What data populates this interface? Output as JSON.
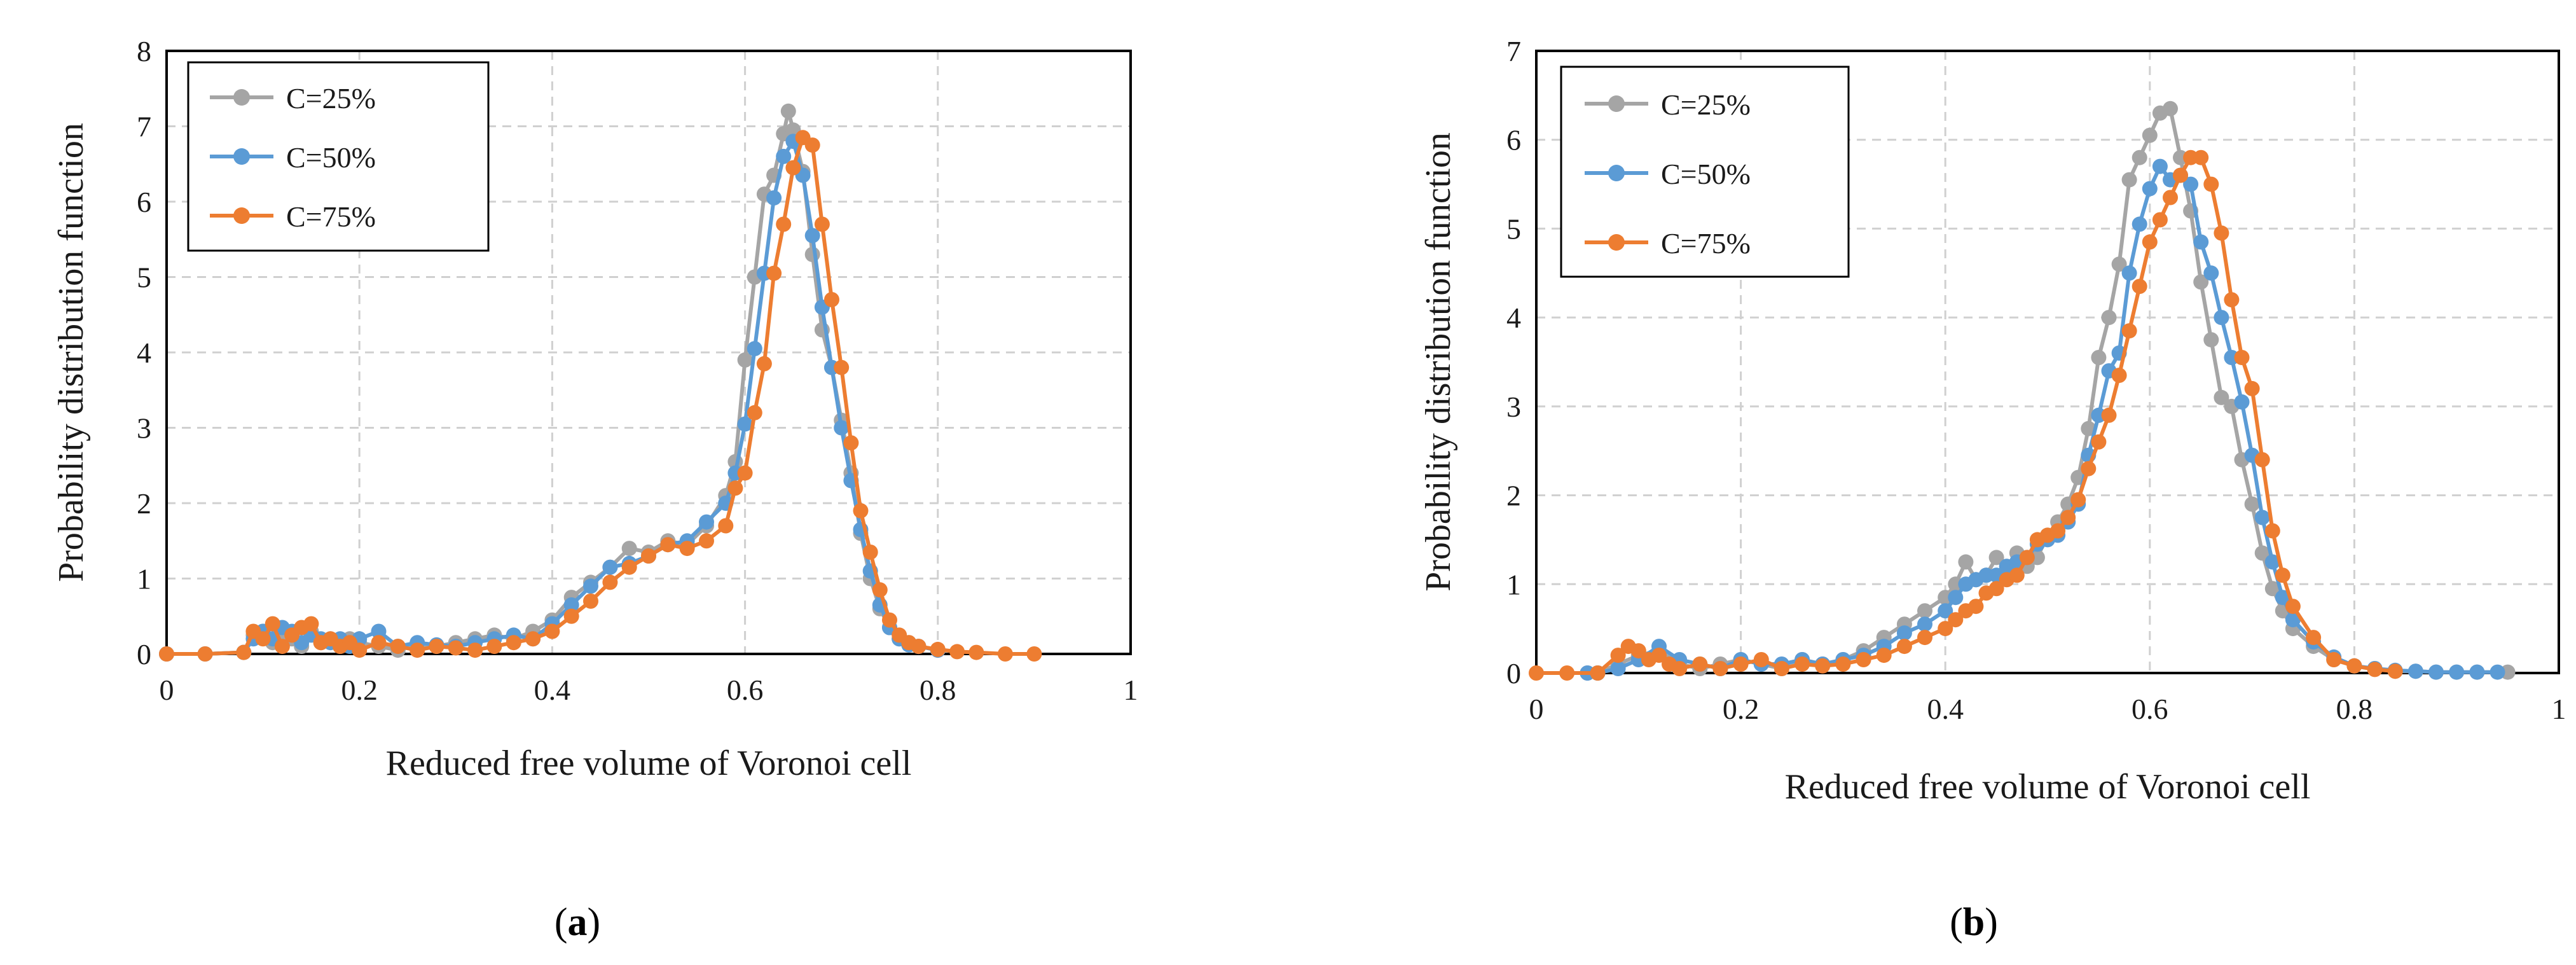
{
  "panels": [
    {
      "label_prefix": "(",
      "label_letter": "a",
      "label_suffix": ")"
    },
    {
      "label_prefix": "(",
      "label_letter": "b",
      "label_suffix": ")"
    }
  ],
  "chart_data": [
    {
      "type": "line",
      "xlabel": "Reduced free volume of Voronoi cell",
      "ylabel": "Probability distribution function",
      "xlim": [
        0,
        1
      ],
      "ylim": [
        0,
        8
      ],
      "xticks": [
        "0",
        "0.2",
        "0.4",
        "0.6",
        "0.8",
        "1"
      ],
      "yticks": [
        "0",
        "1",
        "2",
        "3",
        "4",
        "5",
        "6",
        "7",
        "8"
      ],
      "grid": "dashed",
      "legend_position": "top-left",
      "series": [
        {
          "name": "C=25%",
          "color": "#a5a5a5",
          "x": [
            0,
            0.04,
            0.08,
            0.09,
            0.1,
            0.11,
            0.12,
            0.13,
            0.14,
            0.15,
            0.16,
            0.17,
            0.18,
            0.19,
            0.2,
            0.22,
            0.24,
            0.26,
            0.28,
            0.3,
            0.32,
            0.34,
            0.36,
            0.38,
            0.4,
            0.42,
            0.44,
            0.46,
            0.48,
            0.5,
            0.52,
            0.54,
            0.56,
            0.58,
            0.59,
            0.6,
            0.61,
            0.62,
            0.63,
            0.64,
            0.645,
            0.65,
            0.66,
            0.67,
            0.68,
            0.69,
            0.7,
            0.71,
            0.72,
            0.73,
            0.74,
            0.75,
            0.76,
            0.77,
            0.78,
            0.8
          ],
          "y": [
            0,
            0,
            0.02,
            0.25,
            0.3,
            0.15,
            0.25,
            0.2,
            0.1,
            0.3,
            0.15,
            0.2,
            0.1,
            0.2,
            0.15,
            0.1,
            0.05,
            0.12,
            0.1,
            0.15,
            0.2,
            0.25,
            0.2,
            0.3,
            0.45,
            0.75,
            0.95,
            1.15,
            1.4,
            1.35,
            1.5,
            1.45,
            1.7,
            2.1,
            2.55,
            3.9,
            5.0,
            6.1,
            6.35,
            6.9,
            7.2,
            6.95,
            6.4,
            5.3,
            4.3,
            3.8,
            3.1,
            2.4,
            1.6,
            1.0,
            0.6,
            0.35,
            0.2,
            0.15,
            0.1,
            0.05
          ]
        },
        {
          "name": "C=50%",
          "color": "#5b9bd5",
          "x": [
            0,
            0.04,
            0.08,
            0.09,
            0.1,
            0.11,
            0.12,
            0.13,
            0.14,
            0.15,
            0.16,
            0.17,
            0.18,
            0.19,
            0.2,
            0.22,
            0.24,
            0.26,
            0.28,
            0.3,
            0.32,
            0.34,
            0.36,
            0.38,
            0.4,
            0.42,
            0.44,
            0.46,
            0.48,
            0.5,
            0.52,
            0.54,
            0.56,
            0.58,
            0.59,
            0.6,
            0.61,
            0.62,
            0.63,
            0.64,
            0.65,
            0.66,
            0.67,
            0.68,
            0.69,
            0.7,
            0.71,
            0.72,
            0.73,
            0.74,
            0.75,
            0.76,
            0.77,
            0.78,
            0.8
          ],
          "y": [
            0,
            0,
            0.02,
            0.2,
            0.3,
            0.2,
            0.35,
            0.3,
            0.15,
            0.25,
            0.2,
            0.15,
            0.2,
            0.1,
            0.2,
            0.3,
            0.1,
            0.15,
            0.12,
            0.1,
            0.15,
            0.2,
            0.25,
            0.2,
            0.4,
            0.65,
            0.9,
            1.15,
            1.2,
            1.3,
            1.45,
            1.5,
            1.75,
            2.0,
            2.4,
            3.05,
            4.05,
            5.05,
            6.05,
            6.6,
            6.8,
            6.35,
            5.55,
            4.6,
            3.8,
            3.0,
            2.3,
            1.65,
            1.1,
            0.65,
            0.35,
            0.2,
            0.12,
            0.1,
            0.05
          ]
        },
        {
          "name": "C=75%",
          "color": "#ed7d31",
          "x": [
            0,
            0.04,
            0.08,
            0.09,
            0.1,
            0.11,
            0.12,
            0.13,
            0.14,
            0.15,
            0.16,
            0.17,
            0.18,
            0.19,
            0.2,
            0.22,
            0.24,
            0.26,
            0.28,
            0.3,
            0.32,
            0.34,
            0.36,
            0.38,
            0.4,
            0.42,
            0.44,
            0.46,
            0.48,
            0.5,
            0.52,
            0.54,
            0.56,
            0.58,
            0.59,
            0.6,
            0.61,
            0.62,
            0.63,
            0.64,
            0.65,
            0.66,
            0.67,
            0.68,
            0.69,
            0.7,
            0.71,
            0.72,
            0.73,
            0.74,
            0.75,
            0.76,
            0.77,
            0.78,
            0.8,
            0.82,
            0.84,
            0.87,
            0.9
          ],
          "y": [
            0,
            0,
            0.02,
            0.3,
            0.2,
            0.4,
            0.1,
            0.25,
            0.35,
            0.4,
            0.15,
            0.2,
            0.1,
            0.15,
            0.05,
            0.15,
            0.1,
            0.05,
            0.1,
            0.08,
            0.05,
            0.1,
            0.15,
            0.2,
            0.3,
            0.5,
            0.7,
            0.95,
            1.15,
            1.3,
            1.45,
            1.4,
            1.5,
            1.7,
            2.2,
            2.4,
            3.2,
            3.85,
            5.05,
            5.7,
            6.45,
            6.85,
            6.75,
            5.7,
            4.7,
            3.8,
            2.8,
            1.9,
            1.35,
            0.85,
            0.45,
            0.25,
            0.15,
            0.1,
            0.06,
            0.03,
            0.02,
            0,
            0
          ]
        }
      ]
    },
    {
      "type": "line",
      "xlabel": "Reduced free volume of Voronoi cell",
      "ylabel": "Probability distribution function",
      "xlim": [
        0,
        1
      ],
      "ylim": [
        0,
        7
      ],
      "xticks": [
        "0",
        "0.2",
        "0.4",
        "0.6",
        "0.8",
        "1"
      ],
      "yticks": [
        "0",
        "1",
        "2",
        "3",
        "4",
        "5",
        "6",
        "7"
      ],
      "grid": "dashed",
      "legend_position": "top-left",
      "series": [
        {
          "name": "C=25%",
          "color": "#a5a5a5",
          "x": [
            0.05,
            0.06,
            0.08,
            0.1,
            0.12,
            0.14,
            0.16,
            0.18,
            0.2,
            0.22,
            0.24,
            0.26,
            0.28,
            0.3,
            0.32,
            0.34,
            0.36,
            0.38,
            0.4,
            0.41,
            0.42,
            0.43,
            0.44,
            0.45,
            0.46,
            0.47,
            0.48,
            0.49,
            0.5,
            0.51,
            0.52,
            0.53,
            0.54,
            0.55,
            0.56,
            0.57,
            0.58,
            0.59,
            0.6,
            0.61,
            0.62,
            0.63,
            0.64,
            0.65,
            0.66,
            0.67,
            0.68,
            0.69,
            0.7,
            0.71,
            0.72,
            0.73,
            0.74,
            0.76,
            0.78,
            0.8,
            0.82,
            0.84,
            0.86,
            0.88,
            0.9,
            0.92,
            0.95
          ],
          "y": [
            0,
            0,
            0.1,
            0.2,
            0.25,
            0.1,
            0.05,
            0.1,
            0.15,
            0.1,
            0.05,
            0.15,
            0.1,
            0.15,
            0.25,
            0.4,
            0.55,
            0.7,
            0.85,
            1.0,
            1.25,
            1.05,
            1.1,
            1.3,
            1.15,
            1.35,
            1.2,
            1.3,
            1.55,
            1.7,
            1.9,
            2.2,
            2.75,
            3.55,
            4.0,
            4.6,
            5.55,
            5.8,
            6.05,
            6.3,
            6.35,
            5.8,
            5.2,
            4.4,
            3.75,
            3.1,
            3.0,
            2.4,
            1.9,
            1.35,
            0.95,
            0.7,
            0.5,
            0.3,
            0.15,
            0.08,
            0.05,
            0.02,
            0.02,
            0.01,
            0.01,
            0.01,
            0.01
          ]
        },
        {
          "name": "C=50%",
          "color": "#5b9bd5",
          "x": [
            0.05,
            0.06,
            0.08,
            0.1,
            0.12,
            0.14,
            0.16,
            0.18,
            0.2,
            0.22,
            0.24,
            0.26,
            0.28,
            0.3,
            0.32,
            0.34,
            0.36,
            0.38,
            0.4,
            0.41,
            0.42,
            0.43,
            0.44,
            0.45,
            0.46,
            0.47,
            0.48,
            0.49,
            0.5,
            0.51,
            0.52,
            0.53,
            0.54,
            0.55,
            0.56,
            0.57,
            0.58,
            0.59,
            0.6,
            0.61,
            0.62,
            0.63,
            0.64,
            0.65,
            0.66,
            0.67,
            0.68,
            0.69,
            0.7,
            0.71,
            0.72,
            0.73,
            0.74,
            0.76,
            0.78,
            0.8,
            0.82,
            0.84,
            0.86,
            0.88,
            0.9,
            0.92,
            0.94
          ],
          "y": [
            0,
            0,
            0.05,
            0.15,
            0.3,
            0.15,
            0.1,
            0.05,
            0.15,
            0.1,
            0.1,
            0.15,
            0.1,
            0.15,
            0.2,
            0.3,
            0.45,
            0.55,
            0.7,
            0.85,
            1.0,
            1.05,
            1.1,
            1.1,
            1.2,
            1.25,
            1.3,
            1.45,
            1.5,
            1.55,
            1.7,
            1.9,
            2.45,
            2.9,
            3.4,
            3.6,
            4.5,
            5.05,
            5.45,
            5.7,
            5.55,
            5.6,
            5.5,
            4.85,
            4.5,
            4.0,
            3.55,
            3.05,
            2.45,
            1.75,
            1.25,
            0.85,
            0.6,
            0.35,
            0.18,
            0.08,
            0.05,
            0.03,
            0.02,
            0.01,
            0.01,
            0.01,
            0.01
          ]
        },
        {
          "name": "C=75%",
          "color": "#ed7d31",
          "x": [
            0,
            0.03,
            0.06,
            0.08,
            0.09,
            0.1,
            0.11,
            0.12,
            0.13,
            0.14,
            0.16,
            0.18,
            0.2,
            0.22,
            0.24,
            0.26,
            0.28,
            0.3,
            0.32,
            0.34,
            0.36,
            0.38,
            0.4,
            0.41,
            0.42,
            0.43,
            0.44,
            0.45,
            0.46,
            0.47,
            0.48,
            0.49,
            0.5,
            0.51,
            0.52,
            0.53,
            0.54,
            0.55,
            0.56,
            0.57,
            0.58,
            0.59,
            0.6,
            0.61,
            0.62,
            0.63,
            0.64,
            0.65,
            0.66,
            0.67,
            0.68,
            0.69,
            0.7,
            0.71,
            0.72,
            0.73,
            0.74,
            0.76,
            0.78,
            0.8,
            0.82,
            0.84
          ],
          "y": [
            0,
            0,
            0,
            0.2,
            0.3,
            0.25,
            0.15,
            0.2,
            0.1,
            0.05,
            0.1,
            0.05,
            0.1,
            0.15,
            0.05,
            0.1,
            0.08,
            0.1,
            0.15,
            0.2,
            0.3,
            0.4,
            0.5,
            0.6,
            0.7,
            0.75,
            0.9,
            0.95,
            1.05,
            1.1,
            1.3,
            1.5,
            1.55,
            1.6,
            1.75,
            1.95,
            2.3,
            2.6,
            2.9,
            3.35,
            3.85,
            4.35,
            4.85,
            5.1,
            5.35,
            5.6,
            5.8,
            5.8,
            5.5,
            4.95,
            4.2,
            3.55,
            3.2,
            2.4,
            1.6,
            1.1,
            0.75,
            0.4,
            0.15,
            0.08,
            0.04,
            0.02
          ]
        }
      ]
    }
  ]
}
